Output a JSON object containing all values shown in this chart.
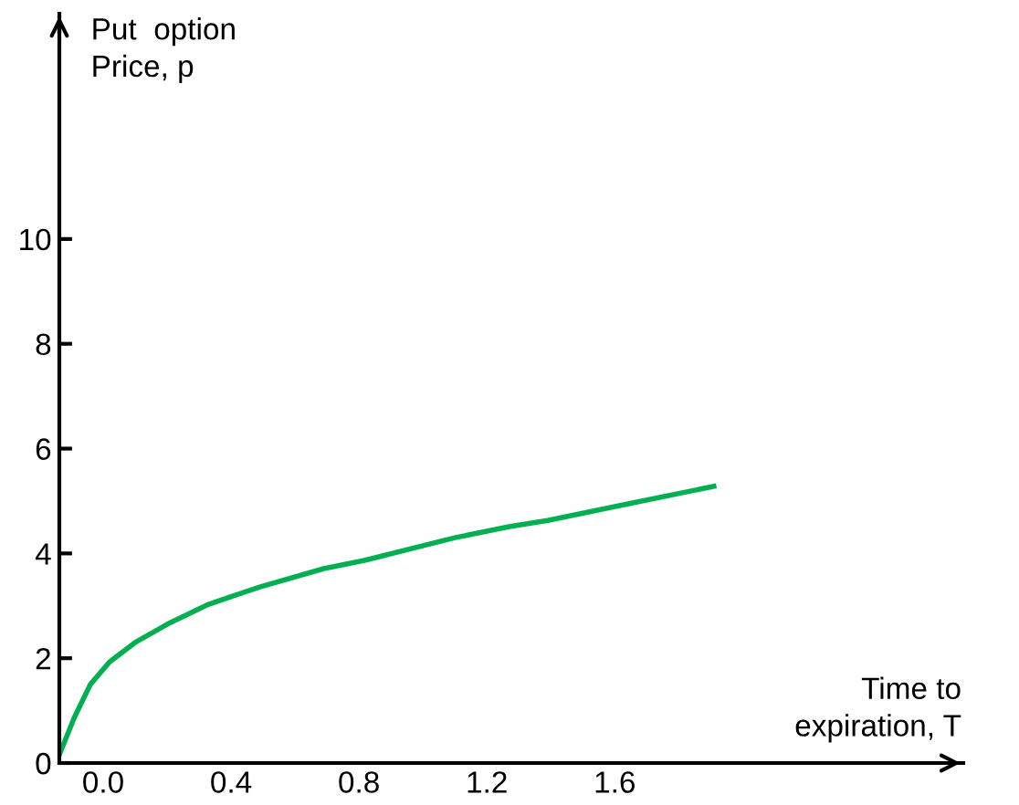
{
  "chart_data": {
    "type": "line",
    "xlabel": "Time to\nexpiration, T",
    "ylabel": "Put  option\nPrice, p",
    "x": [
      -0.137,
      -0.09,
      -0.04,
      0.02,
      0.1,
      0.21,
      0.33,
      0.49,
      0.69,
      0.82,
      1.1,
      1.27,
      1.39,
      1.67,
      1.91
    ],
    "series": [
      {
        "color": "#00b050",
        "values": [
          0.16,
          0.87,
          1.5,
          1.93,
          2.3,
          2.68,
          3.03,
          3.36,
          3.71,
          3.87,
          4.3,
          4.51,
          4.63,
          4.98,
          5.28
        ]
      }
    ],
    "xlim": [
      -0.137,
      2.69
    ],
    "ylim": [
      0,
      14.3
    ],
    "xticks": [
      {
        "value": 0.0,
        "label": "0.0"
      },
      {
        "value": 0.4,
        "label": "0.4"
      },
      {
        "value": 0.8,
        "label": "0.8"
      },
      {
        "value": 1.2,
        "label": "1.2"
      },
      {
        "value": 1.6,
        "label": "1.6"
      }
    ],
    "yticks": [
      0,
      2,
      4,
      6,
      8,
      10
    ],
    "grid": false,
    "marker": "none",
    "line_style": "solid"
  }
}
